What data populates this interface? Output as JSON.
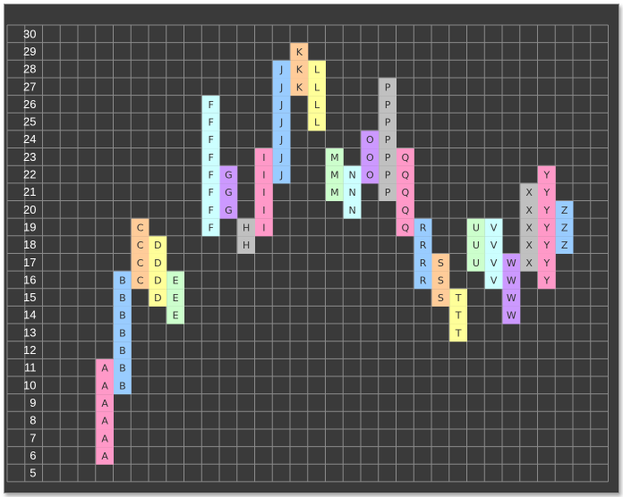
{
  "chart_data": {
    "type": "point-and-figure",
    "title": "",
    "xlabel": "",
    "ylabel": "",
    "ylim": [
      5,
      30
    ],
    "yticks": [
      30,
      29,
      28,
      27,
      26,
      25,
      24,
      23,
      22,
      21,
      20,
      19,
      18,
      17,
      16,
      15,
      14,
      13,
      12,
      11,
      10,
      9,
      8,
      7,
      6,
      5
    ],
    "grid": true,
    "background": "#3a3a3a",
    "gridColor": "#8a8a8a",
    "columns": [
      {
        "label": "A",
        "col": 5,
        "low": 6,
        "high": 11,
        "color": "#ff99c8"
      },
      {
        "label": "B",
        "col": 6,
        "low": 10,
        "high": 16,
        "color": "#99ccff"
      },
      {
        "label": "C",
        "col": 7,
        "low": 16,
        "high": 19,
        "color": "#ffcc99"
      },
      {
        "label": "D",
        "col": 8,
        "low": 15,
        "high": 18,
        "color": "#ffff99"
      },
      {
        "label": "E",
        "col": 9,
        "low": 14,
        "high": 16,
        "color": "#ccffcc"
      },
      {
        "label": "F",
        "col": 11,
        "low": 19,
        "high": 26,
        "color": "#ccffff"
      },
      {
        "label": "G",
        "col": 12,
        "low": 20,
        "high": 22,
        "color": "#cc99ff"
      },
      {
        "label": "H",
        "col": 13,
        "low": 18,
        "high": 19,
        "color": "#c0c0c0"
      },
      {
        "label": "I",
        "col": 14,
        "low": 19,
        "high": 23,
        "color": "#ff99c8"
      },
      {
        "label": "J",
        "col": 15,
        "low": 22,
        "high": 28,
        "color": "#99ccff"
      },
      {
        "label": "K",
        "col": 16,
        "low": 27,
        "high": 29,
        "color": "#ffcc99"
      },
      {
        "label": "L",
        "col": 17,
        "low": 25,
        "high": 28,
        "color": "#ffff99"
      },
      {
        "label": "M",
        "col": 18,
        "low": 21,
        "high": 23,
        "color": "#ccffcc"
      },
      {
        "label": "N",
        "col": 19,
        "low": 20,
        "high": 22,
        "color": "#ccffff"
      },
      {
        "label": "O",
        "col": 20,
        "low": 22,
        "high": 24,
        "color": "#cc99ff"
      },
      {
        "label": "P",
        "col": 21,
        "low": 21,
        "high": 27,
        "color": "#c0c0c0"
      },
      {
        "label": "Q",
        "col": 22,
        "low": 19,
        "high": 23,
        "color": "#ff99c8"
      },
      {
        "label": "R",
        "col": 23,
        "low": 16,
        "high": 19,
        "color": "#99ccff"
      },
      {
        "label": "S",
        "col": 24,
        "low": 15,
        "high": 17,
        "color": "#ffcc99"
      },
      {
        "label": "T",
        "col": 25,
        "low": 13,
        "high": 15,
        "color": "#ffff99"
      },
      {
        "label": "U",
        "col": 26,
        "low": 17,
        "high": 19,
        "color": "#ccffcc"
      },
      {
        "label": "V",
        "col": 27,
        "low": 16,
        "high": 19,
        "color": "#ccffff"
      },
      {
        "label": "W",
        "col": 28,
        "low": 14,
        "high": 17,
        "color": "#cc99ff"
      },
      {
        "label": "X",
        "col": 29,
        "low": 17,
        "high": 21,
        "color": "#c0c0c0"
      },
      {
        "label": "Y",
        "col": 30,
        "low": 16,
        "high": 22,
        "color": "#ff99c8"
      },
      {
        "label": "Z",
        "col": 31,
        "low": 18,
        "high": 20,
        "color": "#99ccff"
      }
    ]
  }
}
